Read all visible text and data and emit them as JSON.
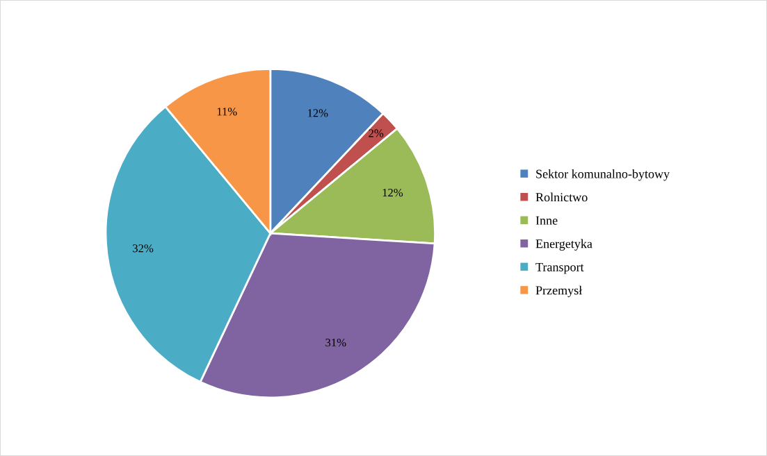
{
  "chart_data": {
    "type": "pie",
    "categories": [
      "Sektor komunalno-bytowy",
      "Rolnictwo",
      "Inne",
      "Energetyka",
      "Transport",
      "Przemysł"
    ],
    "values": [
      12,
      2,
      12,
      31,
      32,
      11
    ],
    "colors": [
      "#4f81bd",
      "#c0504d",
      "#9bbb59",
      "#8064a2",
      "#4bacc6",
      "#f79646"
    ],
    "value_labels": [
      "12%",
      "2%",
      "12%",
      "31%",
      "32%",
      "11%"
    ],
    "legend": "right"
  }
}
